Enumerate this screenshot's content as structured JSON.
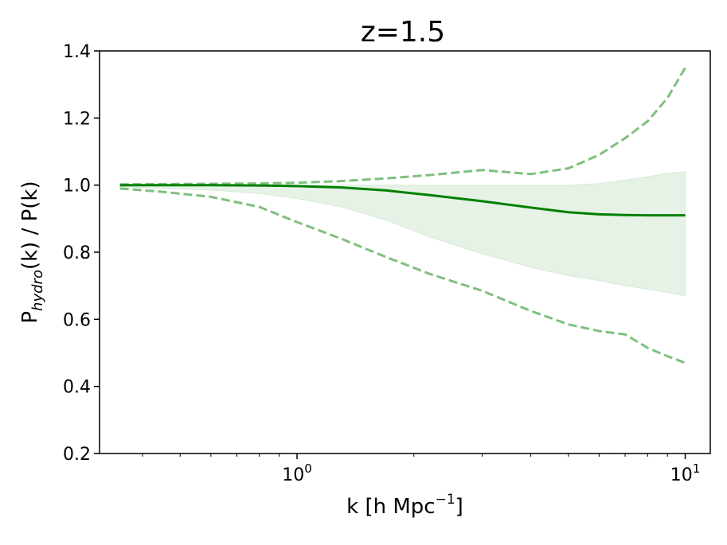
{
  "chart_data": {
    "type": "line",
    "title": "z=1.5",
    "xlabel": {
      "base": "k [h Mpc",
      "sup": "−1",
      "close": "]"
    },
    "ylabel": {
      "pre": "P",
      "sub": "hydro",
      "post": "(k) / P(k)"
    },
    "x_scale": "log",
    "xlim": [
      0.31,
      11.6
    ],
    "ylim": [
      0.2,
      1.4
    ],
    "x_ticks": [
      {
        "value": 1,
        "base": "10",
        "exp": "0"
      },
      {
        "value": 10,
        "base": "10",
        "exp": "1"
      }
    ],
    "y_ticks": [
      {
        "value": 0.2,
        "label": "0.2"
      },
      {
        "value": 0.4,
        "label": "0.4"
      },
      {
        "value": 0.6,
        "label": "0.6"
      },
      {
        "value": 0.8,
        "label": "0.8"
      },
      {
        "value": 1.0,
        "label": "1.0"
      },
      {
        "value": 1.2,
        "label": "1.2"
      },
      {
        "value": 1.4,
        "label": "1.4"
      }
    ],
    "grid": false,
    "legend": "none",
    "colors": {
      "line": "#008000",
      "band": "#008000",
      "dashed": "#7fbf7f"
    },
    "x": [
      0.35,
      0.45,
      0.6,
      0.8,
      1.0,
      1.3,
      1.7,
      2.2,
      3.0,
      4.0,
      5.0,
      6.0,
      7.0,
      8.0,
      9.0,
      10.0
    ],
    "series": [
      {
        "style": "solid",
        "values": [
          1.0,
          1.0,
          1.0,
          0.999,
          0.997,
          0.993,
          0.984,
          0.97,
          0.952,
          0.933,
          0.919,
          0.913,
          0.911,
          0.91,
          0.91,
          0.91
        ]
      },
      {
        "style": "band_upper",
        "values": [
          1.0,
          1.0,
          1.0,
          1.0,
          1.0,
          1.0,
          1.0,
          1.0,
          1.0,
          1.0,
          1.0,
          1.005,
          1.015,
          1.025,
          1.035,
          1.04
        ]
      },
      {
        "style": "band_lower",
        "values": [
          0.995,
          0.99,
          0.985,
          0.975,
          0.96,
          0.935,
          0.895,
          0.845,
          0.795,
          0.755,
          0.73,
          0.715,
          0.7,
          0.69,
          0.68,
          0.67
        ]
      },
      {
        "style": "dashed_upper",
        "values": [
          1.002,
          1.003,
          1.004,
          1.005,
          1.007,
          1.012,
          1.02,
          1.03,
          1.045,
          1.033,
          1.05,
          1.09,
          1.14,
          1.19,
          1.26,
          1.35
        ]
      },
      {
        "style": "dashed_lower",
        "values": [
          0.99,
          0.98,
          0.965,
          0.935,
          0.89,
          0.84,
          0.785,
          0.735,
          0.685,
          0.625,
          0.585,
          0.565,
          0.555,
          0.515,
          0.49,
          0.47
        ]
      }
    ]
  }
}
